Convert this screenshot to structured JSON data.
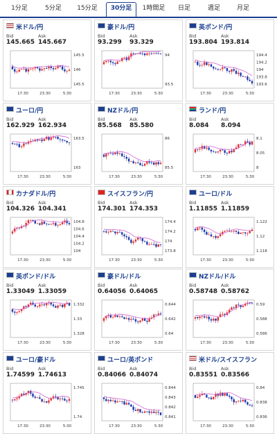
{
  "tabs": [
    {
      "label": "1分足"
    },
    {
      "label": "5分足"
    },
    {
      "label": "15分足"
    },
    {
      "label": "30分足"
    },
    {
      "label": "1時間足"
    },
    {
      "label": "日足"
    },
    {
      "label": "週足"
    },
    {
      "label": "月足"
    }
  ],
  "active_tab": 3,
  "bid_label": "Bid",
  "ask_label": "Ask",
  "colors": {
    "accent": "#1a3f8f",
    "up": "#e03030",
    "down": "#1f3aa8",
    "ma": "#d060d0"
  },
  "cards": [
    {
      "pair": "米ドル/円",
      "flag": "us",
      "bid": "145.665",
      "ask": "145.667",
      "yticks": [
        "145.5",
        "146",
        "145.5"
      ],
      "xticks": [
        "17:30",
        "23:30",
        "5:30"
      ],
      "seed": 1
    },
    {
      "pair": "豪ドル/円",
      "flag": "au",
      "bid": "93.299",
      "ask": "93.329",
      "yticks": [
        "94",
        "93.5"
      ],
      "xticks": [
        "17:30",
        "23:30",
        "5:30"
      ],
      "seed": 2
    },
    {
      "pair": "英ポンド/円",
      "flag": "gb",
      "bid": "193.804",
      "ask": "193.814",
      "yticks": [
        "194.4",
        "194.2",
        "194",
        "193.8",
        "193.6"
      ],
      "xticks": [
        "17:30",
        "23:30",
        "5:30"
      ],
      "seed": 3
    },
    {
      "pair": "ユーロ/円",
      "flag": "eu",
      "bid": "162.929",
      "ask": "162.934",
      "yticks": [
        "163.5",
        "163"
      ],
      "xticks": [
        "17:30",
        "23:30",
        "5:30"
      ],
      "seed": 4
    },
    {
      "pair": "NZドル/円",
      "flag": "nz",
      "bid": "85.568",
      "ask": "85.580",
      "yticks": [
        "86",
        "85.5"
      ],
      "xticks": [
        "17:30",
        "23:30",
        "5:30"
      ],
      "seed": 5
    },
    {
      "pair": "ランド/円",
      "flag": "za",
      "bid": "8.084",
      "ask": "8.094",
      "yticks": [
        "8.1",
        "8.05",
        "8"
      ],
      "xticks": [
        "17:30",
        "23:30",
        "5:30"
      ],
      "seed": 6
    },
    {
      "pair": "カナダドル/円",
      "flag": "ca",
      "bid": "104.326",
      "ask": "104.341",
      "yticks": [
        "104.8",
        "104.6",
        "104.4",
        "104.2",
        "104"
      ],
      "xticks": [
        "17:30",
        "23:30",
        "5:30"
      ],
      "seed": 7
    },
    {
      "pair": "スイスフラン/円",
      "flag": "ch",
      "bid": "174.301",
      "ask": "174.353",
      "yticks": [
        "174.4",
        "174.2",
        "174",
        "173.8"
      ],
      "xticks": [
        "17:30",
        "23:30",
        "5:30"
      ],
      "seed": 8
    },
    {
      "pair": "ユーロ/ドル",
      "flag": "eu",
      "bid": "1.11855",
      "ask": "1.11859",
      "yticks": [
        "1.122",
        "1.12",
        "1.118"
      ],
      "xticks": [
        "17:30",
        "23:30",
        "5:30"
      ],
      "seed": 9
    },
    {
      "pair": "英ポンド/ドル",
      "flag": "gb",
      "bid": "1.33049",
      "ask": "1.33059",
      "yticks": [
        "1.332",
        "1.33",
        "1.328"
      ],
      "xticks": [
        "17:30",
        "23:30",
        "5:30"
      ],
      "seed": 10
    },
    {
      "pair": "豪ドル/ドル",
      "flag": "au",
      "bid": "0.64056",
      "ask": "0.64065",
      "yticks": [
        "0.644",
        "0.642",
        "0.64"
      ],
      "xticks": [
        "17:30",
        "23:30",
        "5:30"
      ],
      "seed": 11
    },
    {
      "pair": "NZドル/ドル",
      "flag": "nz",
      "bid": "0.58748",
      "ask": "0.58762",
      "yticks": [
        "0.59",
        "0.588",
        "0.586"
      ],
      "xticks": [
        "17:30",
        "23:30",
        "5:30"
      ],
      "seed": 12
    },
    {
      "pair": "ユーロ/豪ドル",
      "flag": "eu",
      "bid": "1.74599",
      "ask": "1.74613",
      "yticks": [
        "1.745",
        "1.74"
      ],
      "xticks": [
        "17:30",
        "23:30",
        "5:30"
      ],
      "seed": 13
    },
    {
      "pair": "ユーロ/英ポンド",
      "flag": "eu",
      "bid": "0.84066",
      "ask": "0.84074",
      "yticks": [
        "0.844",
        "0.843",
        "0.842",
        "0.841"
      ],
      "xticks": [
        "17:30",
        "23:30",
        "5:30"
      ],
      "seed": 14
    },
    {
      "pair": "米ドル/スイスフラン",
      "flag": "us",
      "bid": "0.83551",
      "ask": "0.83566",
      "yticks": [
        "0.84",
        "0.838",
        "0.836"
      ],
      "xticks": [
        "17:30",
        "23:30",
        "5:30"
      ],
      "seed": 15
    }
  ]
}
